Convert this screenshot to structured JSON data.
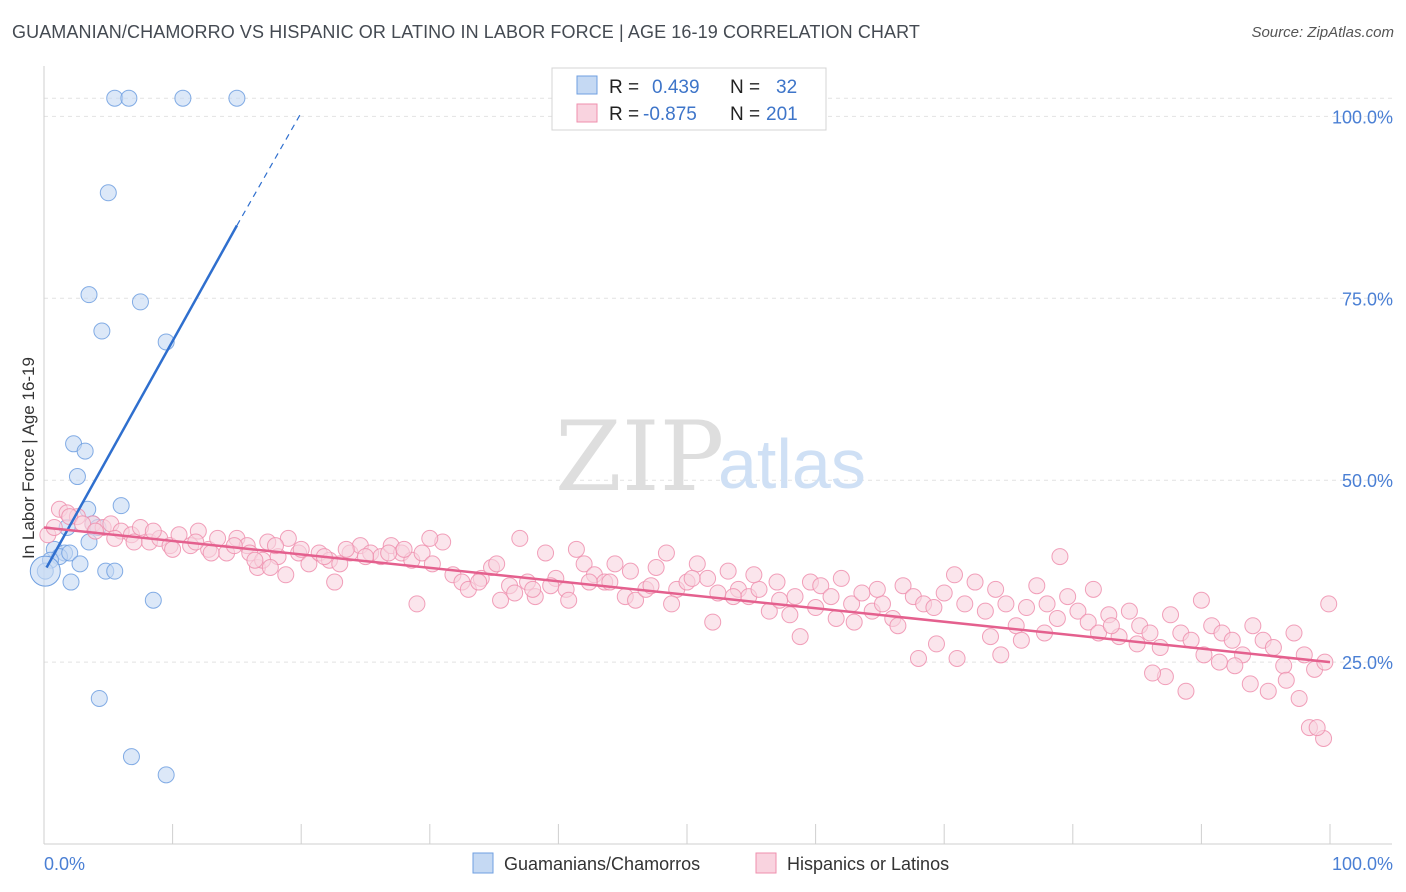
{
  "header": {
    "title": "GUAMANIAN/CHAMORRO VS HISPANIC OR LATINO IN LABOR FORCE | AGE 16-19 CORRELATION CHART",
    "source": "Source: ZipAtlas.com"
  },
  "watermark": {
    "zip": "ZIP",
    "atlas": "atlas"
  },
  "legend": {
    "rows": [
      {
        "r_label": "R =",
        "r_value": "0.439",
        "n_label": "N =",
        "n_value": "32",
        "color": "#a9c8ef"
      },
      {
        "r_label": "R =",
        "r_value": "-0.875",
        "n_label": "N =",
        "n_value": "201",
        "color": "#f5b8cb"
      }
    ]
  },
  "chart_data": {
    "type": "scatter",
    "title": "GUAMANIAN/CHAMORRO VS HISPANIC OR LATINO IN LABOR FORCE | AGE 16-19 CORRELATION CHART",
    "xlabel": "",
    "ylabel": "In Labor Force | Age 16-19",
    "xlim": [
      0,
      100
    ],
    "ylim": [
      0,
      105
    ],
    "x_tick_labels": [
      "0.0%",
      "100.0%"
    ],
    "y_ticks": [
      25,
      50,
      75,
      100
    ],
    "y_tick_labels": [
      "25.0%",
      "50.0%",
      "75.0%",
      "100.0%"
    ],
    "grid": true,
    "legend_position": "top-center",
    "series": [
      {
        "name": "Guamanians/Chamorros",
        "color": "#6f9fe0",
        "fill": "#c5d9f3",
        "trend": {
          "x1": 0.2,
          "y1": 38,
          "x2": 15,
          "y2": 85,
          "dash_to_x": 20,
          "dash_to_y": 100.5,
          "color": "#2f6fce"
        },
        "points": [
          [
            5.5,
            102.5
          ],
          [
            6.6,
            102.5
          ],
          [
            10.8,
            102.5
          ],
          [
            15,
            102.5
          ],
          [
            5,
            89.5
          ],
          [
            3.5,
            75.5
          ],
          [
            7.5,
            74.5
          ],
          [
            4.5,
            70.5
          ],
          [
            9.5,
            69
          ],
          [
            2.3,
            55
          ],
          [
            3.2,
            54
          ],
          [
            2.6,
            50.5
          ],
          [
            3.4,
            46
          ],
          [
            6,
            46.5
          ],
          [
            1.8,
            43.5
          ],
          [
            3.8,
            44
          ],
          [
            4.2,
            43.5
          ],
          [
            0.8,
            40.5
          ],
          [
            1.6,
            40
          ],
          [
            1.2,
            39.5
          ],
          [
            2,
            40
          ],
          [
            0.5,
            39
          ],
          [
            3.5,
            41.5
          ],
          [
            2.8,
            38.5
          ],
          [
            4.8,
            37.5
          ],
          [
            5.5,
            37.5
          ],
          [
            2.1,
            36
          ],
          [
            8.5,
            33.5
          ],
          [
            0.1,
            37.5
          ],
          [
            4.3,
            20
          ],
          [
            6.8,
            12
          ],
          [
            9.5,
            9.5
          ]
        ]
      },
      {
        "name": "Hispanics or Latinos",
        "color": "#ef8fae",
        "fill": "#f9d3df",
        "trend": {
          "x1": 0,
          "y1": 43.5,
          "x2": 100,
          "y2": 25,
          "color": "#e4608e"
        },
        "points": [
          [
            1.2,
            46
          ],
          [
            1.8,
            45.5
          ],
          [
            2.6,
            45
          ],
          [
            3.8,
            44
          ],
          [
            4.6,
            43.5
          ],
          [
            5.2,
            44
          ],
          [
            6,
            43
          ],
          [
            6.8,
            42.5
          ],
          [
            7.5,
            43.5
          ],
          [
            8.2,
            41.5
          ],
          [
            9,
            42
          ],
          [
            9.8,
            41
          ],
          [
            10.5,
            42.5
          ],
          [
            11.4,
            41
          ],
          [
            12,
            43
          ],
          [
            12.8,
            40.5
          ],
          [
            13.5,
            42
          ],
          [
            14.2,
            40
          ],
          [
            15,
            42
          ],
          [
            15.8,
            41
          ],
          [
            16.6,
            38
          ],
          [
            17.4,
            41.5
          ],
          [
            18.2,
            39.5
          ],
          [
            19,
            42
          ],
          [
            19.8,
            40
          ],
          [
            20.6,
            38.5
          ],
          [
            21.4,
            40
          ],
          [
            22.2,
            39
          ],
          [
            23,
            38.5
          ],
          [
            23.8,
            40
          ],
          [
            24.6,
            41
          ],
          [
            25.4,
            40
          ],
          [
            26.2,
            39.5
          ],
          [
            27,
            41
          ],
          [
            27.8,
            40
          ],
          [
            28.6,
            39
          ],
          [
            29.4,
            40
          ],
          [
            30.2,
            38.5
          ],
          [
            31,
            41.5
          ],
          [
            31.8,
            37
          ],
          [
            0.3,
            42.5
          ],
          [
            0.8,
            43.5
          ],
          [
            2,
            45
          ],
          [
            3,
            44
          ],
          [
            4,
            43
          ],
          [
            5.5,
            42
          ],
          [
            7,
            41.5
          ],
          [
            8.5,
            43
          ],
          [
            10,
            40.5
          ],
          [
            11.8,
            41.5
          ],
          [
            13,
            40
          ],
          [
            14.8,
            41
          ],
          [
            16,
            40
          ],
          [
            17,
            39
          ],
          [
            18,
            41
          ],
          [
            20,
            40.5
          ],
          [
            21.8,
            39.5
          ],
          [
            23.5,
            40.5
          ],
          [
            25,
            39.5
          ],
          [
            26.8,
            40
          ],
          [
            28,
            40.5
          ],
          [
            30,
            42
          ],
          [
            32.5,
            36
          ],
          [
            33,
            35
          ],
          [
            34,
            36.5
          ],
          [
            34.8,
            38
          ],
          [
            35.5,
            33.5
          ],
          [
            36.2,
            35.5
          ],
          [
            37,
            42
          ],
          [
            37.6,
            36
          ],
          [
            38.2,
            34
          ],
          [
            39,
            40
          ],
          [
            39.8,
            36.5
          ],
          [
            40.6,
            35
          ],
          [
            41.4,
            40.5
          ],
          [
            42,
            38.5
          ],
          [
            42.8,
            37
          ],
          [
            43.6,
            36
          ],
          [
            44.4,
            38.5
          ],
          [
            45.2,
            34
          ],
          [
            46,
            33.5
          ],
          [
            46.8,
            35
          ],
          [
            47.6,
            38
          ],
          [
            48.4,
            40
          ],
          [
            49.2,
            35
          ],
          [
            50,
            36
          ],
          [
            50.8,
            38.5
          ],
          [
            51.6,
            36.5
          ],
          [
            52.4,
            34.5
          ],
          [
            53.2,
            37.5
          ],
          [
            54,
            35
          ],
          [
            54.8,
            34
          ],
          [
            55.6,
            35
          ],
          [
            56.4,
            32
          ],
          [
            57.2,
            33.5
          ],
          [
            58,
            31.5
          ],
          [
            58.8,
            28.5
          ],
          [
            59.6,
            36
          ],
          [
            60.4,
            35.5
          ],
          [
            61.2,
            34
          ],
          [
            62,
            36.5
          ],
          [
            62.8,
            33
          ],
          [
            63.6,
            34.5
          ],
          [
            64.4,
            32
          ],
          [
            65.2,
            33
          ],
          [
            66,
            31
          ],
          [
            66.8,
            35.5
          ],
          [
            67.6,
            34
          ],
          [
            68.4,
            33
          ],
          [
            69.2,
            32.5
          ],
          [
            70,
            34.5
          ],
          [
            70.8,
            37
          ],
          [
            71.6,
            33
          ],
          [
            72.4,
            36
          ],
          [
            73.2,
            32
          ],
          [
            74,
            35
          ],
          [
            74.8,
            33
          ],
          [
            75.6,
            30
          ],
          [
            76.4,
            32.5
          ],
          [
            77.2,
            35.5
          ],
          [
            78,
            33
          ],
          [
            78.8,
            31
          ],
          [
            79.6,
            34
          ],
          [
            80.4,
            32
          ],
          [
            81.2,
            30.5
          ],
          [
            82,
            29
          ],
          [
            82.8,
            31.5
          ],
          [
            83.6,
            28.5
          ],
          [
            84.4,
            32
          ],
          [
            85.2,
            30
          ],
          [
            86,
            29
          ],
          [
            86.8,
            27
          ],
          [
            87.6,
            31.5
          ],
          [
            88.4,
            29
          ],
          [
            89.2,
            28
          ],
          [
            90,
            33.5
          ],
          [
            90.8,
            30
          ],
          [
            91.6,
            29
          ],
          [
            92.4,
            28
          ],
          [
            93.2,
            26
          ],
          [
            94,
            30
          ],
          [
            94.8,
            28
          ],
          [
            95.6,
            27
          ],
          [
            96.4,
            24.5
          ],
          [
            97.2,
            29
          ],
          [
            98,
            26
          ],
          [
            98.8,
            24
          ],
          [
            99.6,
            25
          ],
          [
            99.9,
            33
          ],
          [
            99.5,
            14.5
          ],
          [
            98.4,
            16
          ],
          [
            99,
            16
          ],
          [
            97.6,
            20
          ],
          [
            96.6,
            22.5
          ],
          [
            95.2,
            21
          ],
          [
            93.8,
            22
          ],
          [
            92.6,
            24.5
          ],
          [
            91.4,
            25
          ],
          [
            90.2,
            26
          ],
          [
            88.8,
            21
          ],
          [
            87.2,
            23
          ],
          [
            86.2,
            23.5
          ],
          [
            85,
            27.5
          ],
          [
            83,
            30
          ],
          [
            81.6,
            35
          ],
          [
            79,
            39.5
          ],
          [
            77.8,
            29
          ],
          [
            76,
            28
          ],
          [
            74.4,
            26
          ],
          [
            73.6,
            28.5
          ],
          [
            71,
            25.5
          ],
          [
            69.4,
            27.5
          ],
          [
            68,
            25.5
          ],
          [
            66.4,
            30
          ],
          [
            64.8,
            35
          ],
          [
            63,
            30.5
          ],
          [
            61.6,
            31
          ],
          [
            60,
            32.5
          ],
          [
            58.4,
            34
          ],
          [
            57,
            36
          ],
          [
            55.2,
            37
          ],
          [
            53.6,
            34
          ],
          [
            52,
            30.5
          ],
          [
            50.4,
            36.5
          ],
          [
            48.8,
            33
          ],
          [
            47.2,
            35.5
          ],
          [
            45.6,
            37.5
          ],
          [
            44,
            36
          ],
          [
            42.4,
            36
          ],
          [
            40.8,
            33.5
          ],
          [
            39.4,
            35.5
          ],
          [
            38,
            35
          ],
          [
            36.6,
            34.5
          ],
          [
            35.2,
            38.5
          ],
          [
            33.8,
            36
          ],
          [
            29,
            33
          ],
          [
            22.6,
            36
          ],
          [
            18.8,
            37
          ],
          [
            17.6,
            38
          ],
          [
            16.4,
            39
          ]
        ]
      }
    ]
  },
  "bottom_legend": [
    {
      "label": "Guamanians/Chamorros",
      "color": "#c5d9f3",
      "border": "#6f9fe0"
    },
    {
      "label": "Hispanics or Latinos",
      "color": "#f9d3df",
      "border": "#ef8fae"
    }
  ]
}
